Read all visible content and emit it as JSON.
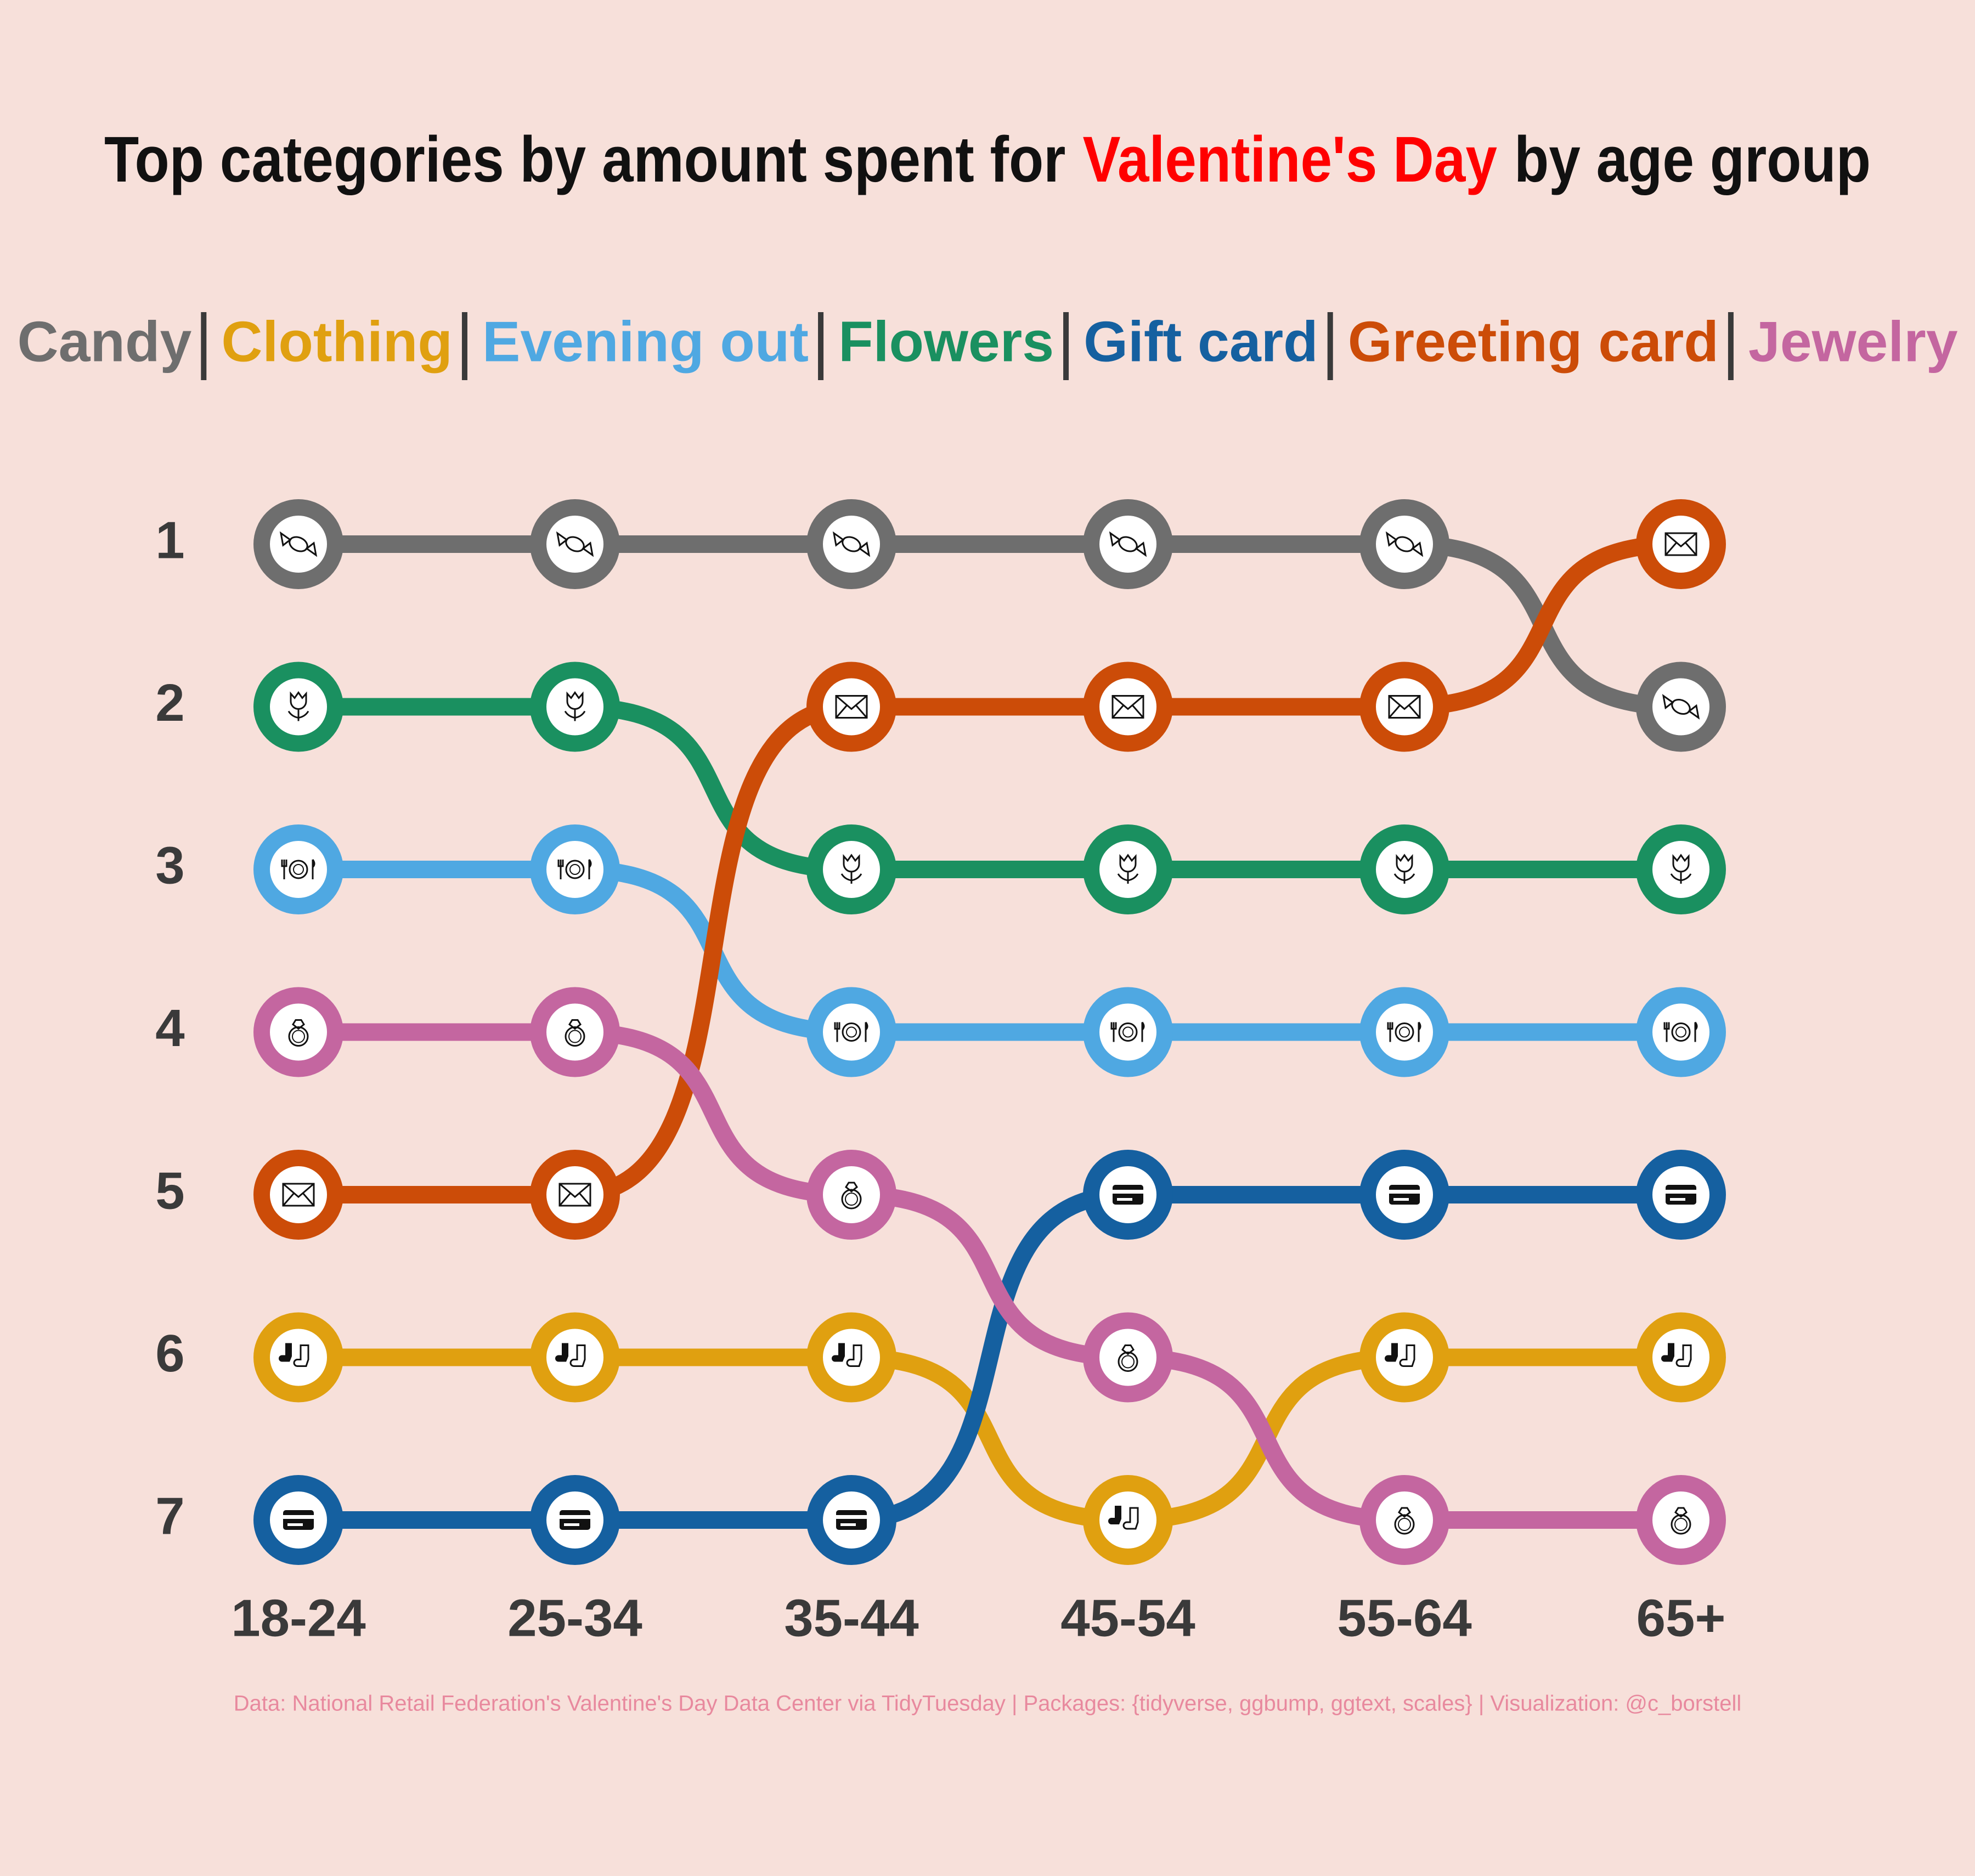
{
  "chart_data": {
    "type": "bump",
    "title": [
      "Top categories by amount spent for",
      "Valentine's Day",
      "by age group"
    ],
    "title_highlight_color": "#ff0000",
    "categories": [
      "18-24",
      "25-34",
      "35-44",
      "45-54",
      "55-64",
      "65+"
    ],
    "ylim": [
      7,
      1
    ],
    "yticks": [
      1,
      2,
      3,
      4,
      5,
      6,
      7
    ],
    "series": [
      {
        "name": "Candy",
        "color": "#6e6e6e",
        "values": [
          1,
          1,
          1,
          1,
          1,
          2
        ]
      },
      {
        "name": "Clothing",
        "color": "#e0a010",
        "values": [
          6,
          6,
          6,
          7,
          6,
          6
        ]
      },
      {
        "name": "Evening out",
        "color": "#4fa8e2",
        "values": [
          3,
          3,
          4,
          4,
          4,
          4
        ]
      },
      {
        "name": "Flowers",
        "color": "#1a9060",
        "values": [
          2,
          2,
          3,
          3,
          3,
          3
        ]
      },
      {
        "name": "Gift card",
        "color": "#1560a0",
        "values": [
          7,
          7,
          7,
          5,
          5,
          5
        ]
      },
      {
        "name": "Greeting card",
        "color": "#cc4c08",
        "values": [
          5,
          5,
          2,
          2,
          2,
          1
        ]
      },
      {
        "name": "Jewelry",
        "color": "#c466a0",
        "values": [
          4,
          4,
          5,
          6,
          7,
          7
        ]
      }
    ],
    "caption": "Data: National Retail Federation's Valentine's Day Data Center via TidyTuesday | Packages: {tidyverse, ggbump, ggtext, scales} | Visualization: @c_borstell",
    "caption_color": "#e8899e"
  }
}
